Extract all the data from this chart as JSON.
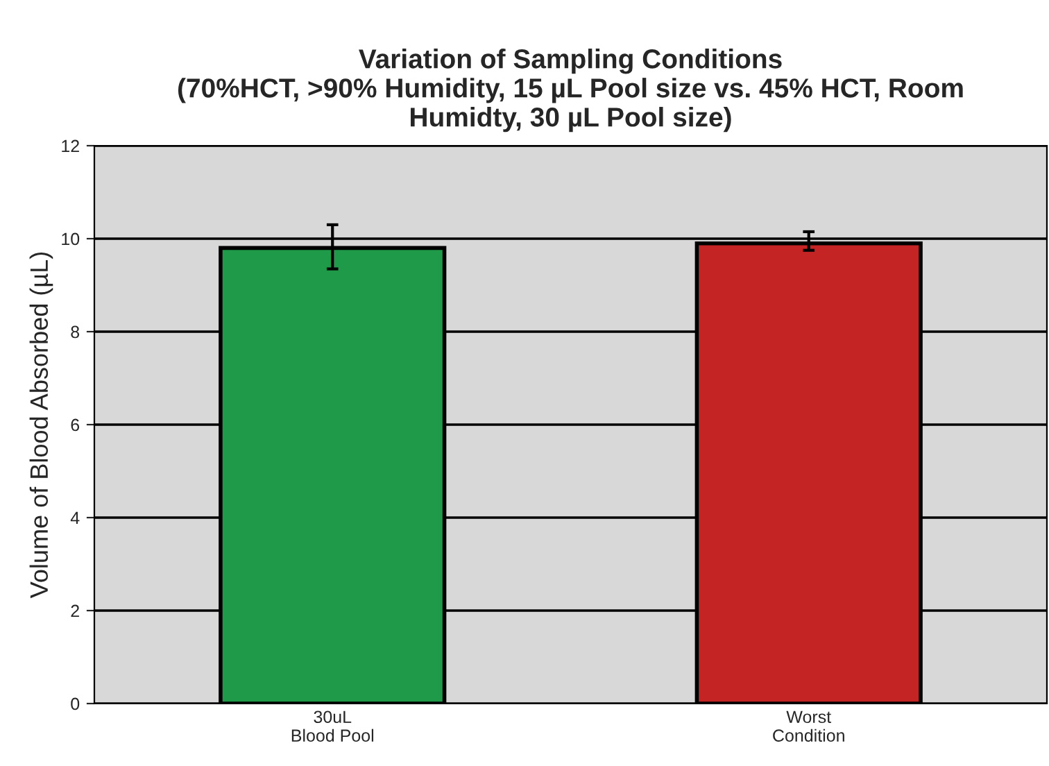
{
  "chart_data": {
    "type": "bar",
    "title": "Variation of Sampling Conditions\n(70%HCT, >90% Humidity, 15 µL Pool size vs. 45% HCT, Room\nHumidty, 30 µL Pool size)",
    "ylabel": "Volume of Blood Absorbed (µL)",
    "categories": [
      "30uL\nBlood Pool",
      "Worst\nCondition"
    ],
    "values": [
      9.8,
      9.9
    ],
    "colors": [
      "#1f9a48",
      "#c42424"
    ],
    "errors": [
      [
        9.35,
        10.3
      ],
      [
        9.75,
        10.15
      ]
    ],
    "ylim": [
      0,
      12
    ],
    "yticks": [
      0,
      2,
      4,
      6,
      8,
      10,
      12
    ],
    "grid": "y"
  }
}
